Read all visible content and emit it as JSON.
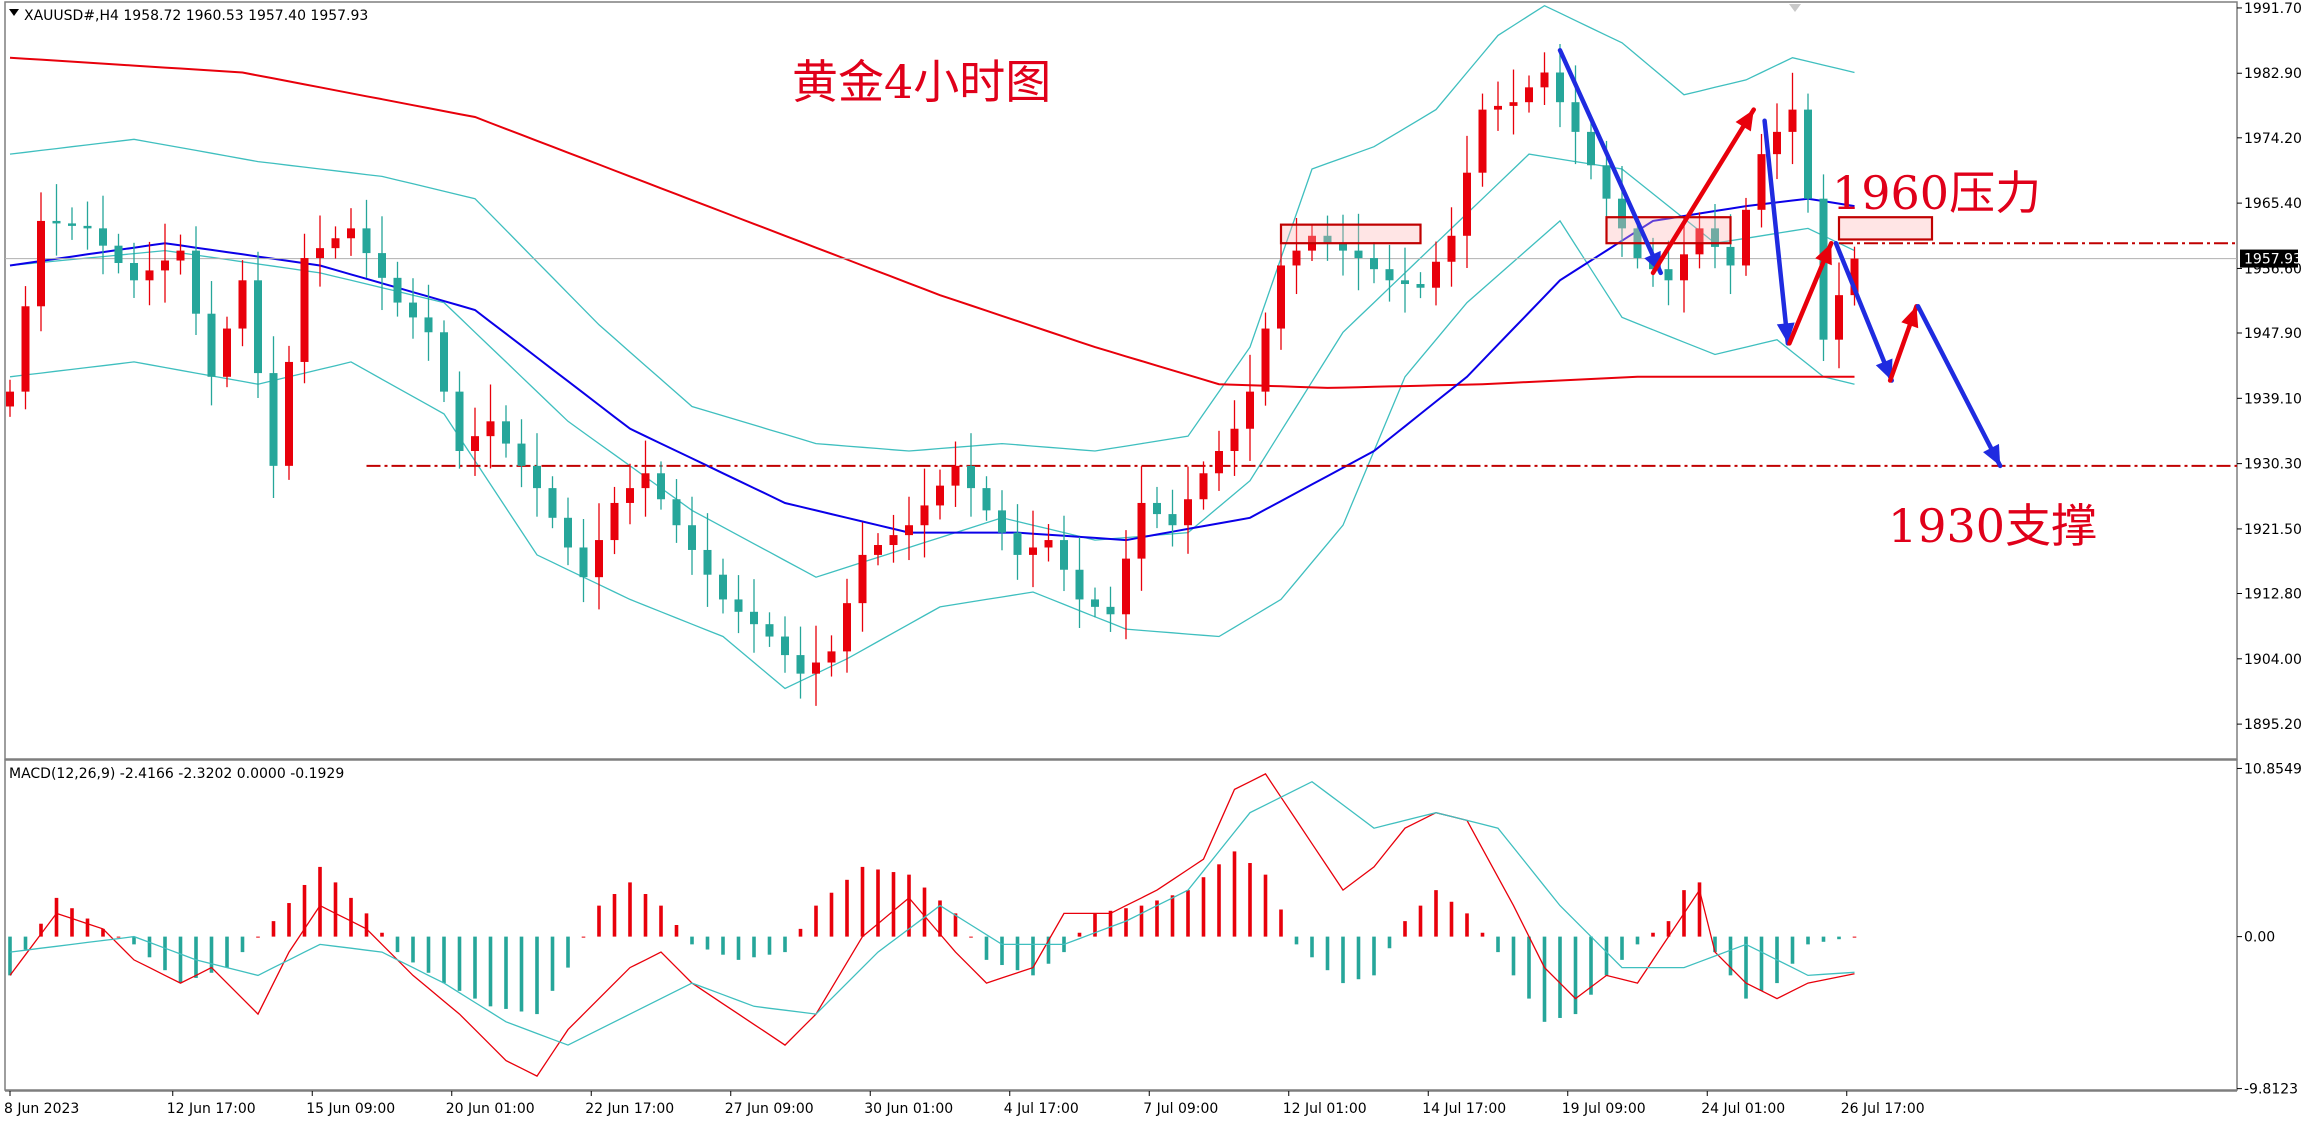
{
  "header": {
    "symbol_line": "XAUUSD#,H4  1958.72 1960.53 1957.40 1957.93",
    "macd_line": "MACD(12,26,9) -2.4166 -2.3202 0.0000 -0.1929"
  },
  "annotations": {
    "title": "黄金4小时图",
    "resistance": "1960压力",
    "support": "1930支撑"
  },
  "current_price_label": "1957.93",
  "colors": {
    "bull": "#e8000b",
    "bear": "#26a69a",
    "ma_red": "#e8000b",
    "ma_blue": "#0b00e8",
    "bands": "#3fbfbf",
    "macd_line": "#e8000b",
    "signal_line": "#3fbfbf",
    "arrow_blue": "#1f2be0",
    "arrow_red": "#e8000b",
    "level": "#c00000"
  },
  "chart_data": {
    "type": "candlestick",
    "price_axis": {
      "ylim": [
        1890.5,
        1992.5
      ],
      "ticks": [
        1991.7,
        1982.9,
        1974.2,
        1965.4,
        1956.6,
        1947.9,
        1939.1,
        1930.3,
        1921.5,
        1912.8,
        1904.0,
        1895.2
      ],
      "tick_labels": [
        "1991.70",
        "1982.90",
        "1974.20",
        "1965.40",
        "1956.60",
        "1947.90",
        "1939.10",
        "1930.30",
        "1921.50",
        "1912.80",
        "1904.00",
        "1895.20"
      ]
    },
    "macd_axis": {
      "ylim": [
        -9.9,
        11.4
      ],
      "ticks": [
        10.8549,
        0.0,
        -9.8123
      ],
      "tick_labels": [
        "10.8549",
        "0.00",
        "-9.8123"
      ]
    },
    "time_axis": {
      "count": 120,
      "labels": [
        {
          "i": 0,
          "text": "8 Jun 2023"
        },
        {
          "i": 10.5,
          "text": "12 Jun 17:00"
        },
        {
          "i": 19.5,
          "text": "15 Jun 09:00"
        },
        {
          "i": 28.5,
          "text": "20 Jun 01:00"
        },
        {
          "i": 37.5,
          "text": "22 Jun 17:00"
        },
        {
          "i": 46.5,
          "text": "27 Jun 09:00"
        },
        {
          "i": 55.5,
          "text": "30 Jun 01:00"
        },
        {
          "i": 64.5,
          "text": "4 Jul 17:00"
        },
        {
          "i": 73.5,
          "text": "7 Jul 09:00"
        },
        {
          "i": 82.5,
          "text": "12 Jul 01:00"
        },
        {
          "i": 91.5,
          "text": "14 Jul 17:00"
        },
        {
          "i": 100.5,
          "text": "19 Jul 09:00"
        },
        {
          "i": 109.5,
          "text": "24 Jul 01:00"
        },
        {
          "i": 118.5,
          "text": "26 Jul 17:00"
        }
      ]
    },
    "close_anchors": [
      [
        0,
        1940
      ],
      [
        2,
        1963
      ],
      [
        5,
        1962
      ],
      [
        8,
        1955
      ],
      [
        11,
        1959
      ],
      [
        13,
        1942
      ],
      [
        15,
        1955
      ],
      [
        17,
        1930
      ],
      [
        19,
        1958
      ],
      [
        22,
        1962
      ],
      [
        25,
        1952
      ],
      [
        27,
        1948
      ],
      [
        29,
        1932
      ],
      [
        31,
        1936
      ],
      [
        34,
        1927
      ],
      [
        37,
        1915
      ],
      [
        39,
        1925
      ],
      [
        41,
        1929
      ],
      [
        43,
        1922
      ],
      [
        46,
        1912
      ],
      [
        49,
        1907
      ],
      [
        51,
        1902
      ],
      [
        53,
        1905
      ],
      [
        55,
        1918
      ],
      [
        58,
        1922
      ],
      [
        61,
        1930
      ],
      [
        63,
        1924
      ],
      [
        65,
        1918
      ],
      [
        67,
        1920
      ],
      [
        69,
        1912
      ],
      [
        71,
        1910
      ],
      [
        73,
        1925
      ],
      [
        75,
        1922
      ],
      [
        77,
        1929
      ],
      [
        79,
        1935
      ],
      [
        80,
        1940
      ],
      [
        82,
        1957
      ],
      [
        84,
        1961
      ],
      [
        87,
        1958
      ],
      [
        89,
        1955
      ],
      [
        91,
        1954
      ],
      [
        93,
        1961
      ],
      [
        95,
        1978
      ],
      [
        97,
        1979
      ],
      [
        99,
        1983
      ],
      [
        101,
        1975
      ],
      [
        103,
        1966
      ],
      [
        105,
        1958
      ],
      [
        107,
        1955
      ],
      [
        109,
        1962
      ],
      [
        111,
        1957
      ],
      [
        113,
        1972
      ],
      [
        115,
        1978
      ],
      [
        116,
        1966
      ],
      [
        117,
        1947
      ],
      [
        118,
        1953
      ],
      [
        119,
        1957.93
      ]
    ],
    "ma_red_anchors": [
      [
        0,
        1985
      ],
      [
        15,
        1983
      ],
      [
        30,
        1977
      ],
      [
        45,
        1965
      ],
      [
        60,
        1953
      ],
      [
        70,
        1946
      ],
      [
        78,
        1941
      ],
      [
        85,
        1940.5
      ],
      [
        95,
        1941
      ],
      [
        105,
        1942
      ],
      [
        119,
        1942
      ]
    ],
    "ma_blue_anchors": [
      [
        0,
        1957
      ],
      [
        10,
        1960
      ],
      [
        20,
        1957
      ],
      [
        30,
        1951
      ],
      [
        40,
        1935
      ],
      [
        50,
        1925
      ],
      [
        58,
        1921
      ],
      [
        65,
        1921
      ],
      [
        72,
        1920
      ],
      [
        80,
        1923
      ],
      [
        88,
        1932
      ],
      [
        94,
        1942
      ],
      [
        100,
        1955
      ],
      [
        106,
        1963
      ],
      [
        112,
        1965
      ],
      [
        116,
        1966
      ],
      [
        119,
        1965
      ]
    ],
    "band_upper_anchors": [
      [
        0,
        1972
      ],
      [
        8,
        1974
      ],
      [
        16,
        1971
      ],
      [
        24,
        1969
      ],
      [
        30,
        1966
      ],
      [
        38,
        1949
      ],
      [
        44,
        1938
      ],
      [
        52,
        1933
      ],
      [
        58,
        1932
      ],
      [
        64,
        1933
      ],
      [
        70,
        1932
      ],
      [
        76,
        1934
      ],
      [
        80,
        1946
      ],
      [
        84,
        1970
      ],
      [
        88,
        1973
      ],
      [
        92,
        1978
      ],
      [
        96,
        1988
      ],
      [
        99,
        1992
      ],
      [
        104,
        1987
      ],
      [
        108,
        1980
      ],
      [
        112,
        1982
      ],
      [
        115,
        1985
      ],
      [
        119,
        1983
      ]
    ],
    "band_lower_anchors": [
      [
        0,
        1942
      ],
      [
        8,
        1944
      ],
      [
        16,
        1941
      ],
      [
        22,
        1944
      ],
      [
        28,
        1937
      ],
      [
        34,
        1918
      ],
      [
        40,
        1912
      ],
      [
        46,
        1907
      ],
      [
        50,
        1900
      ],
      [
        54,
        1904
      ],
      [
        60,
        1911
      ],
      [
        66,
        1913
      ],
      [
        72,
        1908
      ],
      [
        78,
        1907
      ],
      [
        82,
        1912
      ],
      [
        86,
        1922
      ],
      [
        90,
        1942
      ],
      [
        94,
        1952
      ],
      [
        100,
        1963
      ],
      [
        104,
        1950
      ],
      [
        110,
        1945
      ],
      [
        114,
        1947
      ],
      [
        117,
        1942
      ],
      [
        119,
        1941
      ]
    ],
    "band_mid_anchors": [
      [
        0,
        1957
      ],
      [
        10,
        1959
      ],
      [
        20,
        1956
      ],
      [
        28,
        1952
      ],
      [
        36,
        1936
      ],
      [
        44,
        1924
      ],
      [
        52,
        1915
      ],
      [
        58,
        1919
      ],
      [
        64,
        1923
      ],
      [
        70,
        1920
      ],
      [
        76,
        1921
      ],
      [
        80,
        1928
      ],
      [
        86,
        1948
      ],
      [
        92,
        1960
      ],
      [
        98,
        1972
      ],
      [
        104,
        1970
      ],
      [
        110,
        1960
      ],
      [
        116,
        1962
      ],
      [
        119,
        1959
      ]
    ],
    "macd_hist_anchors": [
      [
        0,
        -2.5
      ],
      [
        3,
        2.5
      ],
      [
        6,
        0.5
      ],
      [
        8,
        -0.5
      ],
      [
        11,
        -3
      ],
      [
        14,
        -2
      ],
      [
        17,
        1
      ],
      [
        20,
        4.5
      ],
      [
        23,
        1.5
      ],
      [
        25,
        -1
      ],
      [
        28,
        -3
      ],
      [
        31,
        -4.5
      ],
      [
        34,
        -5
      ],
      [
        36,
        -2
      ],
      [
        38,
        2
      ],
      [
        40,
        3.5
      ],
      [
        42,
        2
      ],
      [
        44,
        -0.5
      ],
      [
        47,
        -1.5
      ],
      [
        50,
        -1
      ],
      [
        52,
        2
      ],
      [
        55,
        4.5
      ],
      [
        58,
        4
      ],
      [
        61,
        1.5
      ],
      [
        63,
        -1.5
      ],
      [
        66,
        -2.5
      ],
      [
        68,
        -1
      ],
      [
        70,
        1.5
      ],
      [
        73,
        2
      ],
      [
        76,
        3
      ],
      [
        79,
        5.5
      ],
      [
        81,
        4
      ],
      [
        83,
        -0.5
      ],
      [
        86,
        -3
      ],
      [
        88,
        -2.5
      ],
      [
        90,
        1
      ],
      [
        92,
        3
      ],
      [
        94,
        1.5
      ],
      [
        96,
        -1
      ],
      [
        99,
        -5.5
      ],
      [
        101,
        -5
      ],
      [
        103,
        -2.5
      ],
      [
        105,
        -0.5
      ],
      [
        107,
        1
      ],
      [
        108,
        3
      ],
      [
        109,
        3.5
      ],
      [
        110,
        -1
      ],
      [
        112,
        -4
      ],
      [
        114,
        -3
      ],
      [
        116,
        -0.5
      ],
      [
        119,
        0
      ]
    ],
    "macd_line_anchors": [
      [
        0,
        -2.5
      ],
      [
        3,
        1.5
      ],
      [
        6,
        0.5
      ],
      [
        8,
        -1.5
      ],
      [
        11,
        -3
      ],
      [
        13,
        -2
      ],
      [
        16,
        -5
      ],
      [
        18,
        -1
      ],
      [
        20,
        2
      ],
      [
        23,
        0.5
      ],
      [
        26,
        -2.5
      ],
      [
        29,
        -5
      ],
      [
        32,
        -8
      ],
      [
        34,
        -9
      ],
      [
        36,
        -6
      ],
      [
        38,
        -4
      ],
      [
        40,
        -2
      ],
      [
        42,
        -1
      ],
      [
        44,
        -3
      ],
      [
        47,
        -5
      ],
      [
        50,
        -7
      ],
      [
        52,
        -5
      ],
      [
        55,
        0
      ],
      [
        58,
        2.5
      ],
      [
        61,
        -1
      ],
      [
        63,
        -3
      ],
      [
        66,
        -2
      ],
      [
        68,
        1.5
      ],
      [
        71,
        1.5
      ],
      [
        74,
        3
      ],
      [
        77,
        5
      ],
      [
        79,
        9.5
      ],
      [
        81,
        10.5
      ],
      [
        83,
        7.5
      ],
      [
        86,
        3
      ],
      [
        88,
        4.5
      ],
      [
        90,
        7
      ],
      [
        92,
        8
      ],
      [
        94,
        7.5
      ],
      [
        97,
        2
      ],
      [
        99,
        -2
      ],
      [
        101,
        -4
      ],
      [
        103,
        -2.5
      ],
      [
        105,
        -3
      ],
      [
        107,
        0
      ],
      [
        109,
        3
      ],
      [
        110,
        -1
      ],
      [
        112,
        -3
      ],
      [
        114,
        -4
      ],
      [
        116,
        -3
      ],
      [
        119,
        -2.4
      ]
    ],
    "signal_line_anchors": [
      [
        0,
        -1
      ],
      [
        4,
        -0.5
      ],
      [
        8,
        0
      ],
      [
        12,
        -1.5
      ],
      [
        16,
        -2.5
      ],
      [
        20,
        -0.5
      ],
      [
        24,
        -1
      ],
      [
        28,
        -3
      ],
      [
        32,
        -5.5
      ],
      [
        36,
        -7
      ],
      [
        40,
        -5
      ],
      [
        44,
        -3
      ],
      [
        48,
        -4.5
      ],
      [
        52,
        -5
      ],
      [
        56,
        -1
      ],
      [
        60,
        2
      ],
      [
        64,
        -0.5
      ],
      [
        68,
        -0.5
      ],
      [
        72,
        1
      ],
      [
        76,
        3
      ],
      [
        80,
        8
      ],
      [
        84,
        10
      ],
      [
        88,
        7
      ],
      [
        92,
        8
      ],
      [
        96,
        7
      ],
      [
        100,
        2
      ],
      [
        104,
        -2
      ],
      [
        108,
        -2
      ],
      [
        112,
        -0.5
      ],
      [
        116,
        -2.5
      ],
      [
        119,
        -2.3
      ]
    ],
    "levels": [
      {
        "price": 1960,
        "style": "dash-dot",
        "x_from": 118,
        "label_key": "resistance"
      },
      {
        "price": 1930,
        "style": "dash-dot",
        "x_from": 23,
        "label_key": "support"
      }
    ],
    "marked_zones": [
      {
        "i0": 82,
        "i1": 91,
        "p0": 1960,
        "p1": 1962.5
      },
      {
        "i0": 103,
        "i1": 111,
        "p0": 1960,
        "p1": 1963.5
      },
      {
        "i0": 118,
        "i1": 124,
        "p0": 1960.5,
        "p1": 1963.5
      }
    ],
    "arrows": [
      {
        "color": "arrow_blue",
        "from": [
          100,
          1986
        ],
        "to": [
          106.5,
          1956
        ]
      },
      {
        "color": "arrow_red",
        "from": [
          106,
          1956
        ],
        "to": [
          112.5,
          1978
        ]
      },
      {
        "color": "arrow_blue",
        "from": [
          113.2,
          1976.5
        ],
        "to": [
          114.7,
          1946.5
        ]
      },
      {
        "color": "arrow_red",
        "from": [
          114.8,
          1946.5
        ],
        "to": [
          117.5,
          1960
        ]
      },
      {
        "color": "arrow_blue",
        "from": [
          117.8,
          1960
        ],
        "to": [
          121.4,
          1941.5
        ]
      },
      {
        "color": "arrow_red",
        "from": [
          121.3,
          1941.5
        ],
        "to": [
          123,
          1951.5
        ]
      },
      {
        "color": "arrow_blue",
        "from": [
          123.1,
          1951.5
        ],
        "to": [
          128.4,
          1930
        ]
      }
    ]
  }
}
